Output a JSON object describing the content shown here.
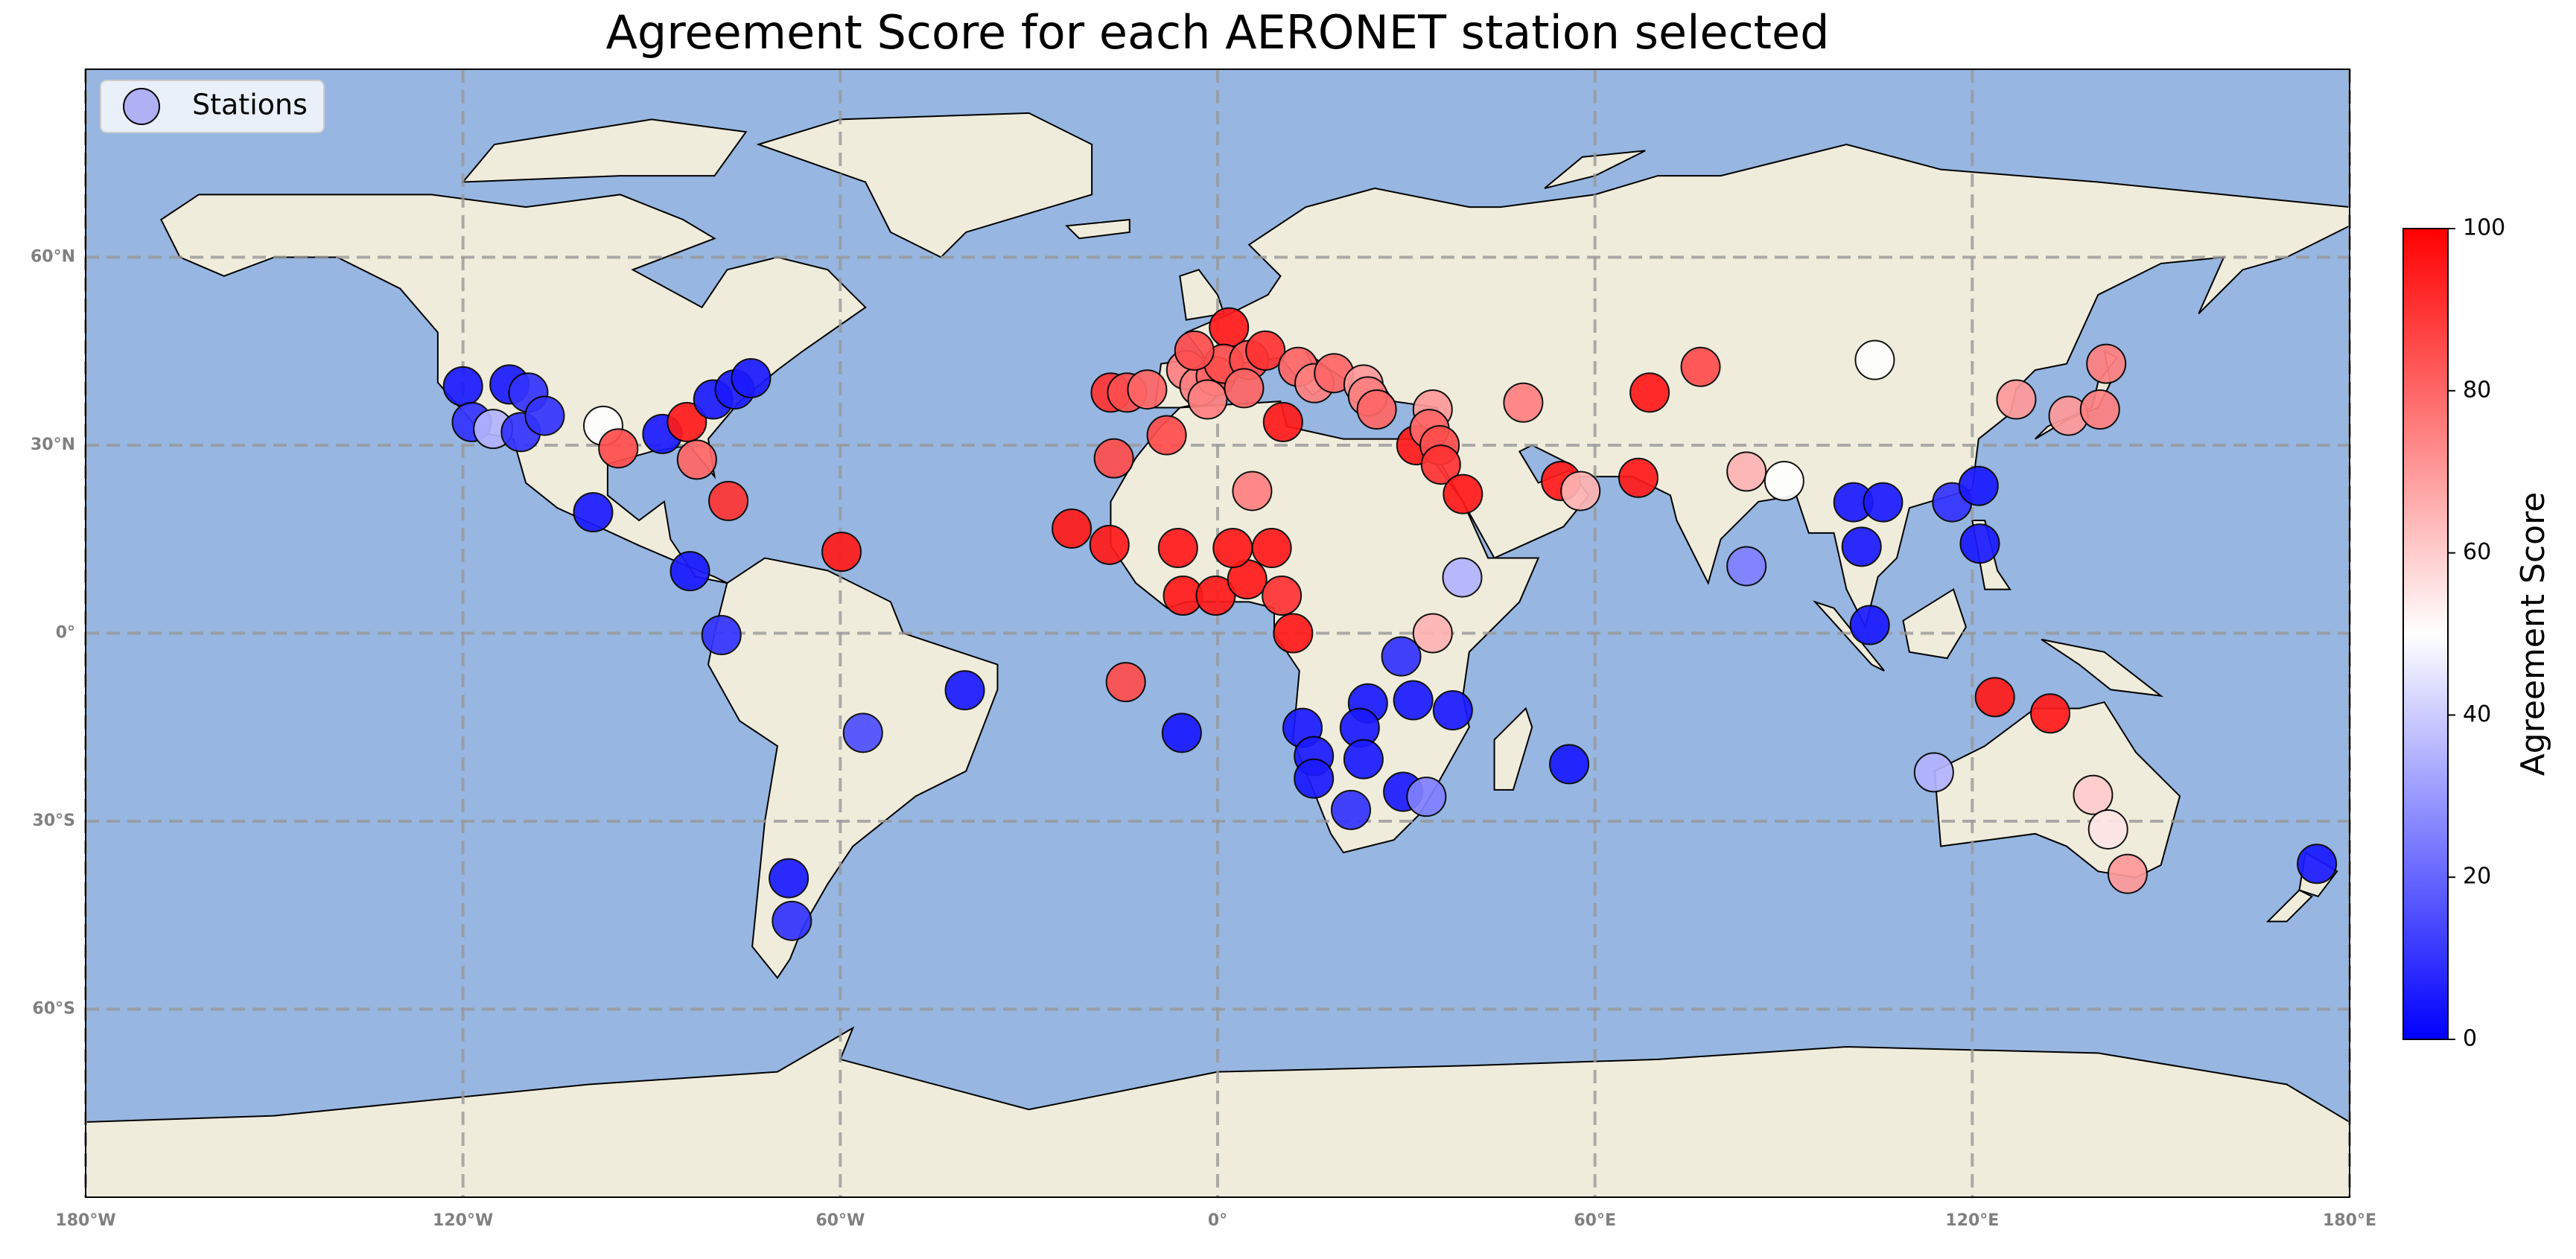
{
  "chart_data": {
    "type": "scatter",
    "title": "Agreement Score for each AERONET station selected",
    "xlim": [
      -180,
      180
    ],
    "ylim": [
      -90,
      90
    ],
    "xticks": [
      {
        "value": -180,
        "label": "180°W"
      },
      {
        "value": -120,
        "label": "120°W"
      },
      {
        "value": -60,
        "label": "60°W"
      },
      {
        "value": 0,
        "label": "0°"
      },
      {
        "value": 60,
        "label": "60°E"
      },
      {
        "value": 120,
        "label": "120°E"
      },
      {
        "value": 180,
        "label": "180°E"
      }
    ],
    "yticks": [
      {
        "value": -60,
        "label": "60°S"
      },
      {
        "value": -30,
        "label": "30°S"
      },
      {
        "value": 0,
        "label": "0°"
      },
      {
        "value": 30,
        "label": "30°N"
      },
      {
        "value": 60,
        "label": "60°N"
      }
    ],
    "grid": true,
    "colormap": "bwr",
    "legend": {
      "loc": "upper left",
      "color": "#b0b0f5"
    },
    "colorbar": {
      "label": "Agreement Score",
      "lim": [
        0,
        100
      ],
      "ticks": [
        0,
        20,
        40,
        60,
        80,
        100
      ]
    },
    "series": [
      {
        "name": "Stations",
        "x": [
          -120,
          -118.6,
          -115.2,
          -112.6,
          -110.8,
          -109.6,
          -107,
          -97.7,
          -95.3,
          -88.3,
          -84.4,
          -82.8,
          -80.2,
          -76.8,
          -74.2,
          -99.3,
          -77.8,
          -83.9,
          -78.9,
          -59.8,
          -40.2,
          -56.4,
          -68.2,
          -67.7,
          -17,
          -14.4,
          -11.2,
          -8.1,
          -5,
          -2.9,
          -0.3,
          1.8,
          1,
          5,
          7.6,
          12.8,
          15.4,
          18.5,
          23.2,
          23.9,
          25.3,
          -1.6,
          -3.7,
          4.2,
          10.4,
          -6.3,
          -23.2,
          -17.2,
          -16.5,
          -5.5,
          -0.3,
          4.7,
          2.4,
          8.6,
          10.2,
          12,
          5.5,
          -14.6,
          -5.7,
          31.6,
          34.2,
          33.7,
          35.3,
          35.5,
          39,
          48.6,
          54.6,
          57.7,
          66.9,
          68.7,
          76.8,
          84.1,
          90.1,
          84.1,
          38.9,
          34.2,
          29.2,
          31.1,
          37.4,
          23.9,
          22.6,
          13.5,
          15.3,
          23.2,
          15.3,
          29.5,
          33.2,
          21.2,
          55.9,
          104.5,
          127,
          135.3,
          140.3,
          141.3,
          101.1,
          105.8,
          116.8,
          121,
          121.2,
          102.4,
          103.7,
          123.6,
          132.4,
          113.9,
          139.2,
          141.6,
          144.7,
          174.8
        ],
        "y": [
          39.4,
          33.7,
          32.6,
          39.7,
          32.1,
          38.4,
          34.7,
          33.1,
          29.5,
          31.8,
          33.7,
          27.7,
          37.3,
          38.9,
          40.7,
          19.3,
          21.1,
          9.9,
          -0.3,
          13,
          -9.1,
          -15.9,
          -39.1,
          -45.9,
          38.4,
          38.4,
          38.9,
          31.6,
          42,
          39.4,
          41,
          48.8,
          43,
          43.6,
          45.1,
          42.5,
          39.9,
          41.5,
          39.7,
          37.8,
          35.7,
          37.3,
          45.1,
          39.1,
          33.7,
          13.6,
          16.7,
          14.1,
          27.9,
          6,
          6,
          8.6,
          13.6,
          13.6,
          6,
          0,
          22.7,
          -7.8,
          -15.9,
          30,
          35.7,
          32.6,
          30,
          26.9,
          22.2,
          36.8,
          24.3,
          22.7,
          24.8,
          38.4,
          42.5,
          25.8,
          24.3,
          10.7,
          8.9,
          0,
          -3.7,
          -10.7,
          -12.3,
          -11.2,
          -15.1,
          -15.1,
          -19.6,
          -20.1,
          -23.2,
          -25.3,
          -26.1,
          -28.2,
          -20.9,
          43.6,
          37.3,
          34.7,
          35.7,
          43,
          20.9,
          20.9,
          20.9,
          23.5,
          14.3,
          13.8,
          1.3,
          -10.2,
          -12.8,
          -22.2,
          -25.8,
          -31.3,
          -38.4,
          -36.8
        ],
        "values": [
          5,
          10,
          35,
          5,
          10,
          10,
          10,
          50,
          85,
          5,
          95,
          80,
          5,
          5,
          5,
          5,
          90,
          5,
          10,
          95,
          5,
          15,
          5,
          10,
          90,
          85,
          80,
          85,
          75,
          75,
          80,
          95,
          85,
          85,
          90,
          80,
          75,
          80,
          70,
          75,
          80,
          75,
          85,
          80,
          95,
          95,
          95,
          95,
          85,
          95,
          95,
          95,
          95,
          95,
          90,
          95,
          75,
          85,
          5,
          95,
          70,
          80,
          85,
          90,
          95,
          75,
          95,
          65,
          95,
          95,
          85,
          65,
          50,
          25,
          35,
          65,
          10,
          5,
          5,
          5,
          5,
          5,
          5,
          5,
          5,
          5,
          25,
          10,
          5,
          50,
          70,
          70,
          75,
          75,
          5,
          5,
          10,
          5,
          5,
          5,
          5,
          95,
          95,
          35,
          60,
          55,
          70,
          5
        ]
      }
    ]
  }
}
